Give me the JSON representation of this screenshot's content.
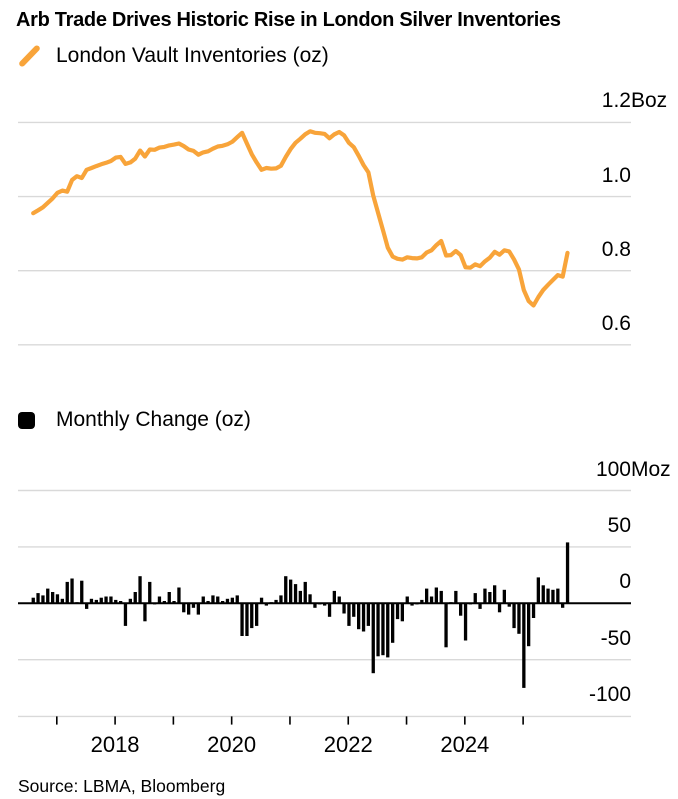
{
  "title": "Arb Trade Drives Historic Rise in London Silver Inventories",
  "source_note": "Source: LBMA, Bloomberg",
  "colors": {
    "line_orange": "#F8A43A",
    "bar_black": "#000000",
    "gridline_gray": "#D9D9D9",
    "axis_black": "#000000",
    "text_black": "#000000"
  },
  "legends": {
    "line": "London Vault Inventories (oz)",
    "bar": "Monthly Change (oz)"
  },
  "chart_data": [
    {
      "type": "line",
      "name": "London Vault Inventories (oz)",
      "unit_suffix": "Boz",
      "x_start": "2016-08",
      "x_end": "2025-10",
      "ylim": [
        0.55,
        1.25
      ],
      "grid": true,
      "y_ticks": [
        1.2,
        1.0,
        0.8,
        0.6
      ],
      "y_tick_labels": [
        "1.2Boz",
        "1.0",
        "0.8",
        "0.6"
      ],
      "values": [
        0.955,
        0.963,
        0.971,
        0.983,
        0.995,
        1.01,
        1.016,
        1.013,
        1.045,
        1.055,
        1.05,
        1.072,
        1.077,
        1.082,
        1.087,
        1.091,
        1.096,
        1.105,
        1.107,
        1.088,
        1.092,
        1.102,
        1.124,
        1.108,
        1.127,
        1.126,
        1.132,
        1.134,
        1.138,
        1.14,
        1.143,
        1.136,
        1.127,
        1.123,
        1.113,
        1.119,
        1.122,
        1.129,
        1.135,
        1.137,
        1.141,
        1.148,
        1.16,
        1.172,
        1.143,
        1.114,
        1.092,
        1.072,
        1.077,
        1.075,
        1.076,
        1.083,
        1.107,
        1.128,
        1.145,
        1.156,
        1.168,
        1.176,
        1.172,
        1.171,
        1.169,
        1.157,
        1.168,
        1.174,
        1.165,
        1.145,
        1.133,
        1.11,
        1.085,
        1.065,
        1.003,
        0.956,
        0.91,
        0.862,
        0.838,
        0.832,
        0.83,
        0.836,
        0.834,
        0.833,
        0.836,
        0.849,
        0.855,
        0.869,
        0.88,
        0.841,
        0.842,
        0.853,
        0.842,
        0.809,
        0.808,
        0.817,
        0.812,
        0.825,
        0.835,
        0.851,
        0.843,
        0.855,
        0.852,
        0.83,
        0.803,
        0.748,
        0.718,
        0.706,
        0.729,
        0.748,
        0.762,
        0.775,
        0.788,
        0.784,
        0.848
      ]
    },
    {
      "type": "bar",
      "name": "Monthly Change (oz)",
      "unit_suffix": "Moz",
      "x_start": "2016-08",
      "x_end": "2025-10",
      "ylim": [
        -110,
        110
      ],
      "grid": true,
      "y_ticks": [
        100,
        50,
        0,
        -50,
        -100
      ],
      "y_tick_labels": [
        "100Moz",
        "50",
        "0",
        "-50",
        "-100"
      ],
      "x_tick_years": [
        2017,
        2018,
        2019,
        2020,
        2021,
        2022,
        2023,
        2024,
        2025
      ],
      "x_tick_labels": [
        "2018",
        "2020",
        "2022",
        "2024"
      ],
      "values": [
        5,
        9,
        7,
        13,
        10,
        8,
        4,
        19,
        22,
        1,
        20,
        -5,
        4,
        3,
        5,
        6,
        6,
        3,
        2,
        -20,
        4,
        10,
        24,
        -16,
        19,
        -1,
        6,
        2,
        10,
        2,
        14,
        -8,
        -10,
        -4,
        -10,
        6,
        2,
        7,
        6,
        2,
        4,
        5,
        7,
        -29,
        -29,
        -22,
        -20,
        5,
        -2,
        1,
        3,
        7,
        24,
        21,
        17,
        11,
        19,
        8,
        -4,
        -1,
        -2,
        -12,
        11,
        6,
        -9,
        -20,
        -12,
        -23,
        -25,
        -20,
        -62,
        -47,
        -46,
        -48,
        -35,
        -14,
        -16,
        6,
        -2,
        -1,
        3,
        13,
        6,
        14,
        11,
        -39,
        1,
        11,
        -11,
        -33,
        -1,
        9,
        -5,
        13,
        10,
        16,
        -8,
        12,
        -3,
        -22,
        -27,
        -75,
        -38,
        -13,
        23,
        16,
        13,
        12,
        13,
        -4,
        54
      ]
    }
  ]
}
